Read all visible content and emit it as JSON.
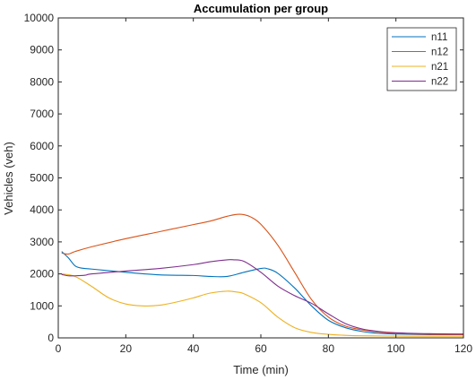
{
  "chart_data": {
    "type": "line",
    "title": "Accumulation per group",
    "xlabel": "Time (min)",
    "ylabel": "Vehicles (veh)",
    "xlim": [
      0,
      120
    ],
    "ylim": [
      0,
      10000
    ],
    "xticks": [
      0,
      20,
      40,
      60,
      80,
      100,
      120
    ],
    "yticks": [
      0,
      1000,
      2000,
      3000,
      4000,
      5000,
      6000,
      7000,
      8000,
      9000,
      10000
    ],
    "grid": false,
    "legend_position": "top-right",
    "series": [
      {
        "name": "n11",
        "color": "#0072BD",
        "x": [
          1,
          3,
          5,
          7,
          10,
          20,
          30,
          40,
          45,
          50,
          55,
          60,
          62,
          65,
          70,
          75,
          80,
          85,
          90,
          95,
          100,
          110,
          120
        ],
        "y": [
          2700,
          2500,
          2250,
          2180,
          2150,
          2050,
          1970,
          1950,
          1920,
          1920,
          2050,
          2170,
          2160,
          2020,
          1560,
          1000,
          550,
          320,
          200,
          140,
          120,
          100,
          100
        ]
      },
      {
        "name": "n12",
        "color": "#D95319",
        "x": [
          1,
          3,
          5,
          10,
          20,
          30,
          40,
          45,
          50,
          53,
          55,
          57,
          60,
          65,
          70,
          75,
          80,
          85,
          90,
          95,
          100,
          110,
          120
        ],
        "y": [
          2650,
          2620,
          2700,
          2850,
          3100,
          3320,
          3540,
          3650,
          3800,
          3860,
          3850,
          3780,
          3550,
          2900,
          2050,
          1200,
          650,
          370,
          250,
          180,
          140,
          110,
          100
        ]
      },
      {
        "name": "n21",
        "color": "#EDB120",
        "x": [
          1,
          5,
          10,
          15,
          20,
          25,
          30,
          35,
          40,
          45,
          50,
          53,
          55,
          60,
          65,
          70,
          75,
          80,
          85,
          90,
          100,
          110,
          120
        ],
        "y": [
          2000,
          1920,
          1600,
          1250,
          1060,
          1000,
          1020,
          1120,
          1250,
          1400,
          1460,
          1430,
          1380,
          1100,
          650,
          320,
          170,
          110,
          80,
          65,
          55,
          50,
          50
        ]
      },
      {
        "name": "n22",
        "color": "#7E2F8E",
        "x": [
          1,
          3,
          5,
          8,
          10,
          20,
          30,
          40,
          45,
          50,
          52,
          55,
          60,
          65,
          70,
          75,
          80,
          85,
          90,
          95,
          100,
          110,
          120
        ],
        "y": [
          1980,
          1940,
          1940,
          1960,
          2000,
          2090,
          2170,
          2290,
          2380,
          2440,
          2440,
          2390,
          2050,
          1620,
          1320,
          1080,
          750,
          450,
          280,
          200,
          160,
          130,
          120
        ]
      }
    ]
  }
}
